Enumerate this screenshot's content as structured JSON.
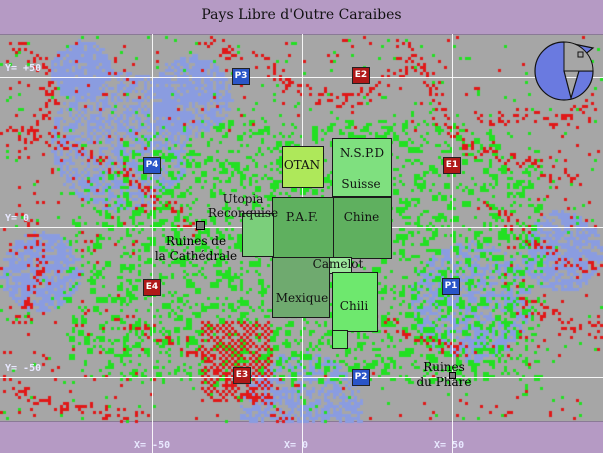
{
  "title": "Pays Libre d'Outre Caraibes",
  "axis_labels": {
    "y_top": "Y= +50",
    "y_mid": "Y= 0",
    "y_bottom": "Y= -50",
    "x_left": "X= -50",
    "x_mid": "X= 0",
    "x_right": "X= 50"
  },
  "zones": {
    "otan": "OTAN",
    "nspd": "N.S.P.D",
    "suisse": "Suisse",
    "paf": "P.A.F.",
    "chine": "Chine",
    "camelot": "Camelot",
    "mexique": "Mexique",
    "chili": "Chili",
    "utopia": "Utopia\nReconquise"
  },
  "sites": {
    "cathedrale": "Ruines de\nla Cathédrale",
    "phare": "Ruines\ndu Phare"
  },
  "markers": {
    "e1": "E1",
    "e2": "E2",
    "e3": "E3",
    "e4": "E4",
    "p1": "P1",
    "p2": "P2",
    "p3": "P3",
    "p4": "P4"
  },
  "colors": {
    "background": "#a6a6a6",
    "band": "#b59ac4",
    "red_territory": "#e01818",
    "blue_territory": "#8a9ce0",
    "green_territory": "#22e022",
    "zone_fill": "#7aa07a"
  }
}
